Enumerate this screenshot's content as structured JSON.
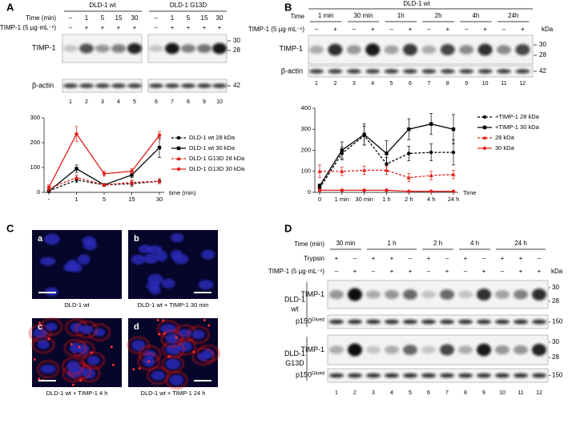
{
  "panel_a": {
    "letter": "A",
    "groups": [
      "DLD-1 wt",
      "DLD-1 G13D"
    ],
    "time_label": "Time (min)",
    "times": [
      "–",
      "1",
      "5",
      "15",
      "30",
      "–",
      "1",
      "5",
      "15",
      "30"
    ],
    "treatment_label": "TIMP-1 (5 µg·mL⁻¹)",
    "treatment": [
      "–",
      "+",
      "+",
      "+",
      "+",
      "–",
      "+",
      "+",
      "+",
      "+"
    ],
    "blot_labels": [
      "TIMP-1",
      "β-actin"
    ],
    "kda": [
      "30",
      "28",
      "42"
    ],
    "lanes": [
      1,
      2,
      3,
      4,
      5,
      6,
      7,
      8,
      9,
      10
    ]
  },
  "panel_b": {
    "letter": "B",
    "group": "DLD-1 wt",
    "time_label": "Time",
    "times": [
      "1 min",
      "30 min",
      "1h",
      "2h",
      "4h",
      "24h"
    ],
    "treatment_label": "TIMP-1 (5 µg·mL⁻¹)",
    "treatment": [
      "–",
      "+",
      "–",
      "+",
      "–",
      "+",
      "–",
      "+",
      "–",
      "+",
      "–",
      "+"
    ],
    "kda_header": "kDa",
    "blot_labels": [
      "TIMP-1",
      "β-actin"
    ],
    "kda": [
      "30",
      "28",
      "42"
    ],
    "lanes": [
      1,
      2,
      3,
      4,
      5,
      6,
      7,
      8,
      9,
      10,
      11,
      12
    ]
  },
  "panel_c": {
    "letter": "C",
    "images": [
      {
        "id": "a",
        "caption": "DLD-1 wt"
      },
      {
        "id": "b",
        "caption": "DLD-1 wt + TIMP-1 30 min"
      },
      {
        "id": "c",
        "caption": "DLD-1 wt + TIMP-1 4 h"
      },
      {
        "id": "d",
        "caption": "DLD-1 wt + TIMP-1 24 h"
      }
    ]
  },
  "panel_d": {
    "letter": "D",
    "time_label": "Time (min)",
    "times": [
      "30 min",
      "1 h",
      "2 h",
      "4 h",
      "24 h"
    ],
    "trypsin_label": "Trypsin",
    "trypsin": [
      "+",
      "–",
      "+",
      "+",
      "–",
      "+",
      "–",
      "+",
      "–",
      "+",
      "+",
      "–"
    ],
    "treatment_label": "TIMP-1 (5 µg·mL⁻¹)",
    "treatment": [
      "–",
      "+",
      "–",
      "+",
      "+",
      "–",
      "+",
      "–",
      "+",
      "–",
      "+",
      "+"
    ],
    "kda_header": "kDa",
    "cell_lines": [
      [
        "DLD-1",
        "wt"
      ],
      [
        "DLD-1",
        "G13D"
      ]
    ],
    "blot_label": "TIMP-1",
    "loading_label": {
      "name": "p150",
      "sup": "Glued"
    },
    "kda": [
      "30",
      "28",
      "150"
    ],
    "lanes": [
      1,
      2,
      3,
      4,
      5,
      6,
      7,
      8,
      9,
      10,
      11,
      12
    ]
  },
  "chart_data": [
    {
      "type": "line",
      "categories": [
        "-",
        "1",
        "5",
        "15",
        "30"
      ],
      "xlabel": "time (min)",
      "ylim": [
        0,
        300
      ],
      "yticks": [
        0,
        100,
        200,
        300
      ],
      "legend": "right",
      "series": [
        {
          "name": "DLD-1 wt 28 kDa",
          "color": "#000000",
          "dashed": true,
          "marker": "circle",
          "values": [
            5,
            50,
            30,
            35,
            45
          ],
          "errors": [
            5,
            10,
            5,
            10,
            10
          ]
        },
        {
          "name": "DLD-1 wt 30 kDa",
          "color": "#000000",
          "dashed": false,
          "marker": "square",
          "values": [
            5,
            95,
            30,
            70,
            180
          ],
          "errors": [
            5,
            15,
            5,
            10,
            40
          ]
        },
        {
          "name": "DLD-1 G13D 28 kDa",
          "color": "#e0201b",
          "dashed": true,
          "marker": "triangle",
          "values": [
            15,
            60,
            30,
            40,
            45
          ],
          "errors": [
            10,
            10,
            5,
            10,
            10
          ]
        },
        {
          "name": "DLD-1 G13D 30 kDa",
          "color": "#e0201b",
          "dashed": false,
          "marker": "circle",
          "values": [
            20,
            235,
            75,
            85,
            230
          ],
          "errors": [
            10,
            30,
            10,
            10,
            15
          ]
        }
      ]
    },
    {
      "type": "line",
      "categories": [
        "0",
        "1 min",
        "30 min",
        "1 h",
        "2 h",
        "4 h",
        "24 h"
      ],
      "xlabel": "Time",
      "ylim": [
        0,
        400
      ],
      "yticks": [
        0,
        100,
        200,
        300,
        400
      ],
      "legend": "right",
      "series": [
        {
          "name": "+TIMP-1 28 kDa",
          "color": "#000000",
          "dashed": true,
          "marker": "circle",
          "values": [
            20,
            185,
            270,
            135,
            185,
            190,
            190
          ],
          "errors": [
            10,
            30,
            45,
            30,
            35,
            40,
            60
          ]
        },
        {
          "name": "+TIMP-1 30 kDa",
          "color": "#000000",
          "dashed": false,
          "marker": "square",
          "values": [
            30,
            200,
            275,
            185,
            300,
            325,
            300
          ],
          "errors": [
            10,
            40,
            50,
            60,
            50,
            50,
            70
          ]
        },
        {
          "name": "28 kDa",
          "color": "#e0201b",
          "dashed": true,
          "marker": "triangle",
          "values": [
            100,
            100,
            105,
            105,
            70,
            80,
            85
          ],
          "errors": [
            30,
            20,
            20,
            20,
            20,
            20,
            20
          ]
        },
        {
          "name": "30 kDa",
          "color": "#e0201b",
          "dashed": false,
          "marker": "circle",
          "values": [
            10,
            10,
            10,
            10,
            5,
            5,
            5
          ],
          "errors": [
            5,
            5,
            5,
            5,
            3,
            3,
            3
          ]
        }
      ]
    }
  ]
}
